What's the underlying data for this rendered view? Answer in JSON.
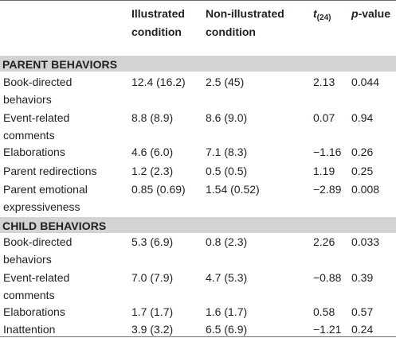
{
  "header": {
    "col1_line1": "Illustrated",
    "col1_line2": "condition",
    "col2_line1": "Non-illustrated",
    "col2_line2": "condition",
    "col3_main": "t",
    "col3_sub": "(24)",
    "col4_main": "p",
    "col4_rest": "-value"
  },
  "parent_section": {
    "title": "PARENT BEHAVIORS",
    "rows": [
      {
        "label1": "Book-directed",
        "label2": "behaviors",
        "illustrated": "12.4 (16.2)",
        "non_illustrated": "2.5 (45)",
        "t": "2.13",
        "p": "0.044"
      },
      {
        "label1": "Event-related",
        "label2": "comments",
        "illustrated": "8.8 (8.9)",
        "non_illustrated": "8.6 (9.0)",
        "t": "0.07",
        "p": "0.94"
      },
      {
        "label1": "Elaborations",
        "label2": "",
        "illustrated": "4.6 (6.0)",
        "non_illustrated": "7.1 (8.3)",
        "t": "−1.16",
        "p": "0.26"
      },
      {
        "label1": "Parent redirections",
        "label2": "",
        "illustrated": "1.2 (2.3)",
        "non_illustrated": "0.5 (0.5)",
        "t": "1.19",
        "p": "0.25"
      },
      {
        "label1": "Parent emotional",
        "label2": "expressiveness",
        "illustrated": "0.85 (0.69)",
        "non_illustrated": "1.54 (0.52)",
        "t": "−2.89",
        "p": "0.008"
      }
    ]
  },
  "child_section": {
    "title": "CHILD BEHAVIORS",
    "rows": [
      {
        "label1": "Book-directed",
        "label2": "behaviors",
        "illustrated": "5.3 (6.9)",
        "non_illustrated": "0.8 (2.3)",
        "t": "2.26",
        "p": "0.033"
      },
      {
        "label1": "Event-related",
        "label2": "comments",
        "illustrated": "7.0 (7.9)",
        "non_illustrated": "4.7 (5.3)",
        "t": "−0.88",
        "p": "0.39"
      },
      {
        "label1": "Elaborations",
        "label2": "",
        "illustrated": "1.7 (1.7)",
        "non_illustrated": "1.6 (1.7)",
        "t": "0.58",
        "p": "0.57"
      },
      {
        "label1": "Inattention",
        "label2": "",
        "illustrated": "3.9 (3.2)",
        "non_illustrated": "6.5 (6.9)",
        "t": "−1.21",
        "p": "0.24"
      }
    ]
  }
}
